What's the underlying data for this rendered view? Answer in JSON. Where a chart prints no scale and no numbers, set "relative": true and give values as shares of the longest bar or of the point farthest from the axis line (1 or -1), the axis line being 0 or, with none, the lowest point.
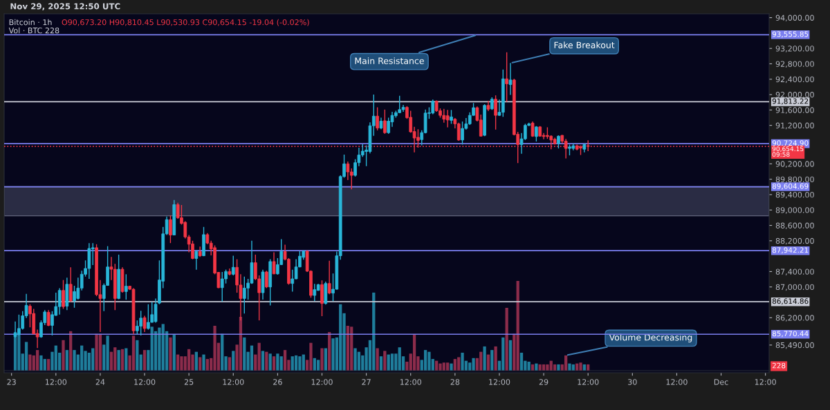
{
  "chart_data": [
    {
      "type": "candlestick",
      "title": "Bitcoin · 1h",
      "subtitle": "O90,673.20 H90,810.45 L90,530.93 C90,654.15 -19.04 (-0.02%)",
      "annotations": [
        "Nov 29, 2025 12:50 UTC",
        {
          "text": "Main Resistance",
          "x": "2025-11-28T06:00",
          "y": 93555.85
        },
        {
          "text": "Fake Breakout",
          "x": "2025-11-28T15:00",
          "y": 92820
        }
      ],
      "colors": [
        "#29b6d8",
        "#29b6d8",
        "#29b6d8",
        "#29b6d8",
        "#f23645",
        "#f23645",
        "#f23645",
        "#29b6d8",
        "#29b6d8",
        "#f23645",
        "#29b6d8",
        "#29b6d8",
        "#29b6d8",
        "#f23645",
        "#29b6d8",
        "#f23645",
        "#29b6d8",
        "#29b6d8",
        "#29b6d8",
        "#29b6d8",
        "#29b6d8",
        "#29b6d8",
        "#f23645",
        "#f23645",
        "#29b6d8",
        "#29b6d8",
        "#f23645",
        "#f23645",
        "#29b6d8",
        "#f23645",
        "#29b6d8",
        "#f23645",
        "#f23645",
        "#29b6d8",
        "#29b6d8",
        "#f23645",
        "#29b6d8",
        "#29b6d8",
        "#29b6d8",
        "#29b6d8",
        "#29b6d8",
        "#29b6d8",
        "#f23645",
        "#29b6d8",
        "#f23645",
        "#f23645",
        "#f23645",
        "#f23645",
        "#f23645",
        "#29b6d8",
        "#f23645",
        "#29b6d8",
        "#f23645",
        "#f23645",
        "#f23645",
        "#f23645",
        "#29b6d8",
        "#29b6d8",
        "#f23645",
        "#29b6d8",
        "#f23645",
        "#f23645",
        "#29b6d8",
        "#29b6d8",
        "#29b6d8",
        "#f23645",
        "#f23645",
        "#29b6d8",
        "#f23645",
        "#29b6d8",
        "#f23645",
        "#29b6d8",
        "#29b6d8",
        "#f23645",
        "#f23645",
        "#29b6d8",
        "#29b6d8",
        "#29b6d8",
        "#29b6d8",
        "#f23645",
        "#f23645",
        "#29b6d8",
        "#29b6d8",
        "#f23645",
        "#29b6d8",
        "#f23645",
        "#29b6d8",
        "#29b6d8",
        "#29b6d8",
        "#29b6d8",
        "#f23645",
        "#f23645",
        "#29b6d8",
        "#29b6d8",
        "#29b6d8",
        "#29b6d8",
        "#29b6d8",
        "#29b6d8",
        "#f23645",
        "#29b6d8",
        "#f23645",
        "#29b6d8",
        "#29b6d8",
        "#29b6d8",
        "#29b6d8",
        "#29b6d8",
        "#f23645",
        "#f23645",
        "#f23645",
        "#f23645",
        "#29b6d8",
        "#29b6d8",
        "#29b6d8",
        "#29b6d8",
        "#f23645",
        "#f23645",
        "#f23645",
        "#f23645",
        "#29b6d8",
        "#f23645",
        "#f23645",
        "#29b6d8",
        "#29b6d8",
        "#29b6d8",
        "#29b6d8",
        "#f23645",
        "#f23645",
        "#29b6d8",
        "#f23645",
        "#29b6d8",
        "#f23645",
        "#29b6d8",
        "#29b6d8",
        "#f23645",
        "#29b6d8",
        "#f23645",
        "#f23645",
        "#29b6d8",
        "#29b6d8",
        "#29b6d8",
        "#f23645",
        "#29b6d8",
        "#f23645",
        "#f23645",
        "#f23645",
        "#f23645",
        "#f23645",
        "#29b6d8",
        "#f23645",
        "#f23645",
        "#29b6d8",
        "#29b6d8",
        "#f23645",
        "#f23645",
        "#29b6d8",
        "#f23645"
      ],
      "x": [
        "2025-11-23T01:00",
        "2025-11-23T02:00",
        "2025-11-23T03:00",
        "2025-11-23T04:00",
        "2025-11-23T05:00",
        "2025-11-23T06:00",
        "2025-11-23T07:00",
        "2025-11-23T08:00",
        "2025-11-23T09:00",
        "2025-11-23T10:00",
        "2025-11-23T11:00",
        "2025-11-23T12:00",
        "2025-11-23T13:00",
        "2025-11-23T14:00",
        "2025-11-23T15:00",
        "2025-11-23T16:00",
        "2025-11-23T17:00",
        "2025-11-23T18:00",
        "2025-11-23T19:00",
        "2025-11-23T20:00",
        "2025-11-23T21:00",
        "2025-11-23T22:00",
        "2025-11-23T23:00",
        "2025-11-24T00:00",
        "2025-11-24T01:00",
        "2025-11-24T02:00",
        "2025-11-24T03:00",
        "2025-11-24T04:00",
        "2025-11-24T05:00",
        "2025-11-24T06:00",
        "2025-11-24T07:00",
        "2025-11-24T08:00",
        "2025-11-24T09:00",
        "2025-11-24T10:00",
        "2025-11-24T11:00",
        "2025-11-24T12:00",
        "2025-11-24T13:00",
        "2025-11-24T14:00",
        "2025-11-24T15:00",
        "2025-11-24T16:00",
        "2025-11-24T17:00",
        "2025-11-24T18:00",
        "2025-11-24T19:00",
        "2025-11-24T20:00",
        "2025-11-24T21:00",
        "2025-11-24T22:00",
        "2025-11-24T23:00",
        "2025-11-25T00:00",
        "2025-11-25T01:00",
        "2025-11-25T02:00",
        "2025-11-25T03:00",
        "2025-11-25T04:00",
        "2025-11-25T05:00",
        "2025-11-25T06:00",
        "2025-11-25T07:00",
        "2025-11-25T08:00",
        "2025-11-25T09:00",
        "2025-11-25T10:00",
        "2025-11-25T11:00",
        "2025-11-25T12:00",
        "2025-11-25T13:00",
        "2025-11-25T14:00",
        "2025-11-25T15:00",
        "2025-11-25T16:00",
        "2025-11-25T17:00",
        "2025-11-25T18:00",
        "2025-11-25T19:00",
        "2025-11-25T20:00",
        "2025-11-25T21:00",
        "2025-11-25T22:00",
        "2025-11-25T23:00",
        "2025-11-26T00:00",
        "2025-11-26T01:00",
        "2025-11-26T02:00",
        "2025-11-26T03:00",
        "2025-11-26T04:00",
        "2025-11-26T05:00",
        "2025-11-26T06:00",
        "2025-11-26T07:00",
        "2025-11-26T08:00",
        "2025-11-26T09:00",
        "2025-11-26T10:00",
        "2025-11-26T11:00",
        "2025-11-26T12:00",
        "2025-11-26T13:00",
        "2025-11-26T14:00",
        "2025-11-26T15:00",
        "2025-11-26T16:00",
        "2025-11-26T17:00",
        "2025-11-26T18:00",
        "2025-11-26T19:00",
        "2025-11-26T20:00",
        "2025-11-26T21:00",
        "2025-11-26T22:00",
        "2025-11-26T23:00",
        "2025-11-27T00:00",
        "2025-11-27T01:00",
        "2025-11-27T02:00",
        "2025-11-27T03:00",
        "2025-11-27T04:00",
        "2025-11-27T05:00",
        "2025-11-27T06:00",
        "2025-11-27T07:00",
        "2025-11-27T08:00",
        "2025-11-27T09:00",
        "2025-11-27T10:00",
        "2025-11-27T11:00",
        "2025-11-27T12:00",
        "2025-11-27T13:00",
        "2025-11-27T14:00",
        "2025-11-27T15:00",
        "2025-11-27T16:00",
        "2025-11-27T17:00",
        "2025-11-27T18:00",
        "2025-11-27T19:00",
        "2025-11-27T20:00",
        "2025-11-27T21:00",
        "2025-11-27T22:00",
        "2025-11-27T23:00",
        "2025-11-28T00:00",
        "2025-11-28T01:00",
        "2025-11-28T02:00",
        "2025-11-28T03:00",
        "2025-11-28T04:00",
        "2025-11-28T05:00",
        "2025-11-28T06:00",
        "2025-11-28T07:00",
        "2025-11-28T08:00",
        "2025-11-28T09:00",
        "2025-11-28T10:00",
        "2025-11-28T11:00",
        "2025-11-28T12:00",
        "2025-11-28T13:00",
        "2025-11-28T14:00",
        "2025-11-28T15:00",
        "2025-11-28T16:00",
        "2025-11-28T17:00",
        "2025-11-28T18:00",
        "2025-11-28T19:00",
        "2025-11-28T20:00",
        "2025-11-28T21:00",
        "2025-11-28T22:00",
        "2025-11-28T23:00",
        "2025-11-29T00:00",
        "2025-11-29T01:00",
        "2025-11-29T02:00",
        "2025-11-29T03:00",
        "2025-11-29T04:00",
        "2025-11-29T05:00",
        "2025-11-29T06:00",
        "2025-11-29T07:00",
        "2025-11-29T08:00",
        "2025-11-29T09:00",
        "2025-11-29T10:00",
        "2025-11-29T11:00",
        "2025-11-29T12:00"
      ],
      "ohlc": [
        [
          85710,
          86100,
          85680,
          85800
        ],
        [
          85770,
          86280,
          85740,
          85920
        ],
        [
          85920,
          86370,
          85890,
          86250
        ],
        [
          86250,
          86820,
          86190,
          86520
        ],
        [
          86500,
          86550,
          85950,
          86300
        ],
        [
          86310,
          86430,
          85770,
          85780
        ],
        [
          85790,
          85890,
          85410,
          85700
        ],
        [
          85700,
          86130,
          85680,
          86070
        ],
        [
          86070,
          86400,
          86010,
          86350
        ],
        [
          86340,
          86400,
          85980,
          86000
        ],
        [
          86000,
          86370,
          85740,
          86280
        ],
        [
          86260,
          86850,
          86250,
          86490
        ],
        [
          86490,
          86970,
          86280,
          86910
        ],
        [
          86910,
          87180,
          86430,
          86490
        ],
        [
          86500,
          87240,
          86400,
          87070
        ],
        [
          87070,
          87510,
          86610,
          86640
        ],
        [
          86640,
          87030,
          86460,
          86880
        ],
        [
          86700,
          87240,
          86670,
          86970
        ],
        [
          86970,
          87420,
          86910,
          87330
        ],
        [
          87330,
          87690,
          87270,
          87480
        ],
        [
          87480,
          88140,
          87210,
          88000
        ],
        [
          87990,
          88140,
          87570,
          88020
        ],
        [
          88020,
          88110,
          86760,
          86800
        ],
        [
          86800,
          87180,
          85830,
          86700
        ],
        [
          86700,
          87090,
          86370,
          87040
        ],
        [
          87040,
          88060,
          87030,
          87520
        ],
        [
          87520,
          87780,
          87180,
          87460
        ],
        [
          87460,
          87600,
          86400,
          86700
        ],
        [
          86700,
          87840,
          86680,
          87460
        ],
        [
          87460,
          87510,
          86850,
          86880
        ],
        [
          86880,
          87330,
          86670,
          87020
        ],
        [
          87020,
          87030,
          86920,
          86940
        ],
        [
          86940,
          86970,
          85770,
          85860
        ],
        [
          85860,
          86130,
          85770,
          85980
        ],
        [
          85980,
          86380,
          85740,
          86190
        ],
        [
          86200,
          86250,
          85830,
          85920
        ],
        [
          85920,
          86550,
          85890,
          86080
        ],
        [
          86080,
          86610,
          86070,
          86280
        ],
        [
          86100,
          86700,
          86070,
          86550
        ],
        [
          86580,
          87690,
          86550,
          87180
        ],
        [
          87150,
          88560,
          86970,
          88380
        ],
        [
          88380,
          88830,
          88350,
          88750
        ],
        [
          88750,
          88860,
          88140,
          88350
        ],
        [
          88350,
          89260,
          88350,
          89140
        ],
        [
          89140,
          89190,
          88770,
          88800
        ],
        [
          88800,
          89130,
          88620,
          88650
        ],
        [
          88680,
          88710,
          88260,
          88300
        ],
        [
          88300,
          88350,
          87900,
          88110
        ],
        [
          88120,
          88200,
          87720,
          87740
        ],
        [
          87740,
          87960,
          87450,
          87920
        ],
        [
          87920,
          88050,
          87780,
          87810
        ],
        [
          87810,
          88560,
          87800,
          88360
        ],
        [
          88360,
          88400,
          88110,
          88140
        ],
        [
          88140,
          88200,
          87820,
          87990
        ],
        [
          88020,
          88080,
          87330,
          87360
        ],
        [
          87380,
          87390,
          86970,
          86980
        ],
        [
          86980,
          87390,
          86620,
          87210
        ],
        [
          87210,
          87450,
          87090,
          87400
        ],
        [
          87400,
          87480,
          87300,
          87330
        ],
        [
          87330,
          87810,
          87300,
          87510
        ],
        [
          87510,
          87720,
          86850,
          87050
        ],
        [
          87050,
          87330,
          86130,
          86700
        ],
        [
          86700,
          87270,
          86310,
          86970
        ],
        [
          86970,
          87210,
          86670,
          87100
        ],
        [
          87100,
          88200,
          87080,
          87630
        ],
        [
          87630,
          87840,
          87180,
          87210
        ],
        [
          87210,
          87300,
          86130,
          86850
        ],
        [
          86850,
          87450,
          86670,
          87390
        ],
        [
          87390,
          87420,
          86970,
          87000
        ],
        [
          87000,
          87720,
          86520,
          87660
        ],
        [
          87660,
          87900,
          87330,
          87340
        ],
        [
          87340,
          87750,
          87320,
          87580
        ],
        [
          87580,
          88240,
          87570,
          87920
        ],
        [
          87920,
          88100,
          87690,
          87720
        ],
        [
          87720,
          87750,
          87060,
          87090
        ],
        [
          87090,
          87450,
          86880,
          87210
        ],
        [
          87210,
          87720,
          87200,
          87520
        ],
        [
          87520,
          87930,
          87510,
          87800
        ],
        [
          87770,
          87950,
          87710,
          87930
        ],
        [
          87930,
          87950,
          87390,
          87410
        ],
        [
          87410,
          87430,
          86720,
          86780
        ],
        [
          86780,
          87080,
          86630,
          86930
        ],
        [
          86910,
          87080,
          86900,
          87060
        ],
        [
          87060,
          87170,
          86240,
          86570
        ],
        [
          86570,
          87140,
          86540,
          87090
        ],
        [
          87090,
          87680,
          86810,
          86840
        ],
        [
          86840,
          87350,
          86630,
          86940
        ],
        [
          86940,
          87920,
          86930,
          87810
        ],
        [
          87810,
          89900,
          87710,
          89870
        ],
        [
          89870,
          90440,
          89840,
          90200
        ],
        [
          90200,
          90260,
          89780,
          89990
        ],
        [
          89990,
          90080,
          89540,
          89900
        ],
        [
          89900,
          90320,
          89870,
          90230
        ],
        [
          90230,
          90620,
          90140,
          90430
        ],
        [
          90430,
          90710,
          90380,
          90530
        ],
        [
          90520,
          90680,
          90140,
          90560
        ],
        [
          90520,
          91280,
          90470,
          91190
        ],
        [
          91190,
          92000,
          90930,
          91440
        ],
        [
          91440,
          91670,
          91070,
          91130
        ],
        [
          91130,
          91400,
          91100,
          91310
        ],
        [
          91320,
          91610,
          90980,
          91010
        ],
        [
          91010,
          91400,
          90980,
          91310
        ],
        [
          91290,
          91550,
          91160,
          91460
        ],
        [
          91450,
          91580,
          91400,
          91530
        ],
        [
          91530,
          91970,
          91520,
          91610
        ],
        [
          91610,
          91730,
          91550,
          91670
        ],
        [
          91670,
          91700,
          91370,
          91400
        ],
        [
          91410,
          91580,
          91010,
          91030
        ],
        [
          91040,
          91160,
          90500,
          90870
        ],
        [
          90890,
          91100,
          90620,
          90810
        ],
        [
          90830,
          91070,
          90680,
          91010
        ],
        [
          91010,
          91610,
          90990,
          91520
        ],
        [
          91510,
          91670,
          91370,
          91530
        ],
        [
          91520,
          91870,
          91490,
          91830
        ],
        [
          91830,
          91850,
          91550,
          91580
        ],
        [
          91580,
          91640,
          91400,
          91460
        ],
        [
          91460,
          91630,
          91270,
          91360
        ],
        [
          91450,
          91600,
          91150,
          91340
        ],
        [
          91330,
          91600,
          91240,
          91420
        ],
        [
          91360,
          91390,
          91120,
          91240
        ],
        [
          91240,
          91270,
          90800,
          90820
        ],
        [
          90820,
          91300,
          90700,
          91120
        ],
        [
          91120,
          91390,
          91090,
          91240
        ],
        [
          91240,
          91540,
          91210,
          91460
        ],
        [
          91460,
          91780,
          91450,
          91660
        ],
        [
          91660,
          91690,
          91300,
          91330
        ],
        [
          91340,
          91480,
          90910,
          90920
        ],
        [
          90940,
          91750,
          90920,
          91720
        ],
        [
          91720,
          91840,
          91570,
          91620
        ],
        [
          91630,
          91930,
          91600,
          91880
        ],
        [
          91880,
          91980,
          91090,
          91460
        ],
        [
          91460,
          91870,
          91450,
          91540
        ],
        [
          91540,
          92650,
          91420,
          92410
        ],
        [
          92410,
          93100,
          91810,
          92280
        ],
        [
          92260,
          92820,
          91990,
          92380
        ],
        [
          92380,
          92410,
          90940,
          90960
        ],
        [
          90970,
          91030,
          90220,
          90700
        ],
        [
          90700,
          91000,
          90460,
          90850
        ],
        [
          90850,
          91240,
          90820,
          91200
        ],
        [
          91200,
          91270,
          91180,
          91240
        ],
        [
          91260,
          91300,
          90900,
          90920
        ],
        [
          90910,
          91180,
          90780,
          91160
        ],
        [
          91160,
          91180,
          90910,
          90920
        ],
        [
          90940,
          91000,
          90840,
          90910
        ],
        [
          90940,
          91150,
          90850,
          90910
        ],
        [
          90920,
          90940,
          90580,
          90820
        ],
        [
          90840,
          90880,
          90700,
          90720
        ],
        [
          90730,
          90940,
          90600,
          90920
        ],
        [
          90940,
          90950,
          90730,
          90790
        ],
        [
          90790,
          90850,
          90340,
          90600
        ],
        [
          90600,
          90700,
          90420,
          90640
        ],
        [
          90600,
          90730,
          90550,
          90670
        ],
        [
          90670,
          90700,
          90550,
          90580
        ],
        [
          90640,
          90680,
          90430,
          90610
        ],
        [
          90580,
          90730,
          90500,
          90700
        ],
        [
          90673.2,
          90810.45,
          90530.93,
          90654.15
        ]
      ],
      "xlim": [
        "2025-11-22T22:00",
        "2025-12-01T13:00"
      ],
      "xticks": [
        {
          "value": "2025-11-23T00:00",
          "label": "23"
        },
        {
          "value": "2025-11-23T12:00",
          "label": "12:00"
        },
        {
          "value": "2025-11-24T00:00",
          "label": "24"
        },
        {
          "value": "2025-11-24T12:00",
          "label": "12:00"
        },
        {
          "value": "2025-11-25T00:00",
          "label": "25"
        },
        {
          "value": "2025-11-25T12:00",
          "label": "12:00"
        },
        {
          "value": "2025-11-26T00:00",
          "label": "26"
        },
        {
          "value": "2025-11-26T12:00",
          "label": "12:00"
        },
        {
          "value": "2025-11-27T00:00",
          "label": "27"
        },
        {
          "value": "2025-11-27T12:00",
          "label": "12:00"
        },
        {
          "value": "2025-11-28T00:00",
          "label": "28"
        },
        {
          "value": "2025-11-28T12:00",
          "label": "12:00"
        },
        {
          "value": "2025-11-29T00:00",
          "label": "29"
        },
        {
          "value": "2025-11-29T12:00",
          "label": "12:00"
        },
        {
          "value": "2025-11-30T00:00",
          "label": "30"
        },
        {
          "value": "2025-11-30T12:00",
          "label": "12:00"
        },
        {
          "value": "2025-12-01T00:00",
          "label": "Dec"
        },
        {
          "value": "2025-12-01T12:00",
          "label": "12:00"
        }
      ],
      "ylim": [
        84770,
        94100
      ],
      "yticks": [
        {
          "value": 94000,
          "label": "94,000.00"
        },
        {
          "value": 93200,
          "label": "93,200.00"
        },
        {
          "value": 92800,
          "label": "92,800.00"
        },
        {
          "value": 92400,
          "label": "92,400.00"
        },
        {
          "value": 92000,
          "label": "92,000.00"
        },
        {
          "value": 91600,
          "label": "91,600.00"
        },
        {
          "value": 91200,
          "label": "91,200.00"
        },
        {
          "value": 90200,
          "label": "90,200.00"
        },
        {
          "value": 89800,
          "label": "89,800.00"
        },
        {
          "value": 89400,
          "label": "89,400.00"
        },
        {
          "value": 89000,
          "label": "89,000.00"
        },
        {
          "value": 88600,
          "label": "88,600.00"
        },
        {
          "value": 88200,
          "label": "88,200.00"
        },
        {
          "value": 87400,
          "label": "87,400.00"
        },
        {
          "value": 87000,
          "label": "87,000.00"
        },
        {
          "value": 86200,
          "label": "86,200.00"
        },
        {
          "value": 85490,
          "label": "85,490.00"
        }
      ],
      "ref_lines": [
        {
          "axis": "y",
          "value": 93555.85,
          "label": "93,555.85",
          "color": "#7b7ff0"
        },
        {
          "axis": "y",
          "value": 91813.22,
          "label": "91,813.22",
          "color": "#c9ccd6"
        },
        {
          "axis": "y",
          "value": 90724.9,
          "label": "90,724.90",
          "color": "#7b7ff0"
        },
        {
          "axis": "y",
          "value": 90654.15,
          "label": "90,654.15\n09:58",
          "color": "#f23645",
          "line_style": "dotted"
        },
        {
          "axis": "y",
          "value": 89604.69,
          "label": "89,604.69",
          "color": "#7b7ff0"
        },
        {
          "axis": "y",
          "value": 87942.21,
          "label": "87,942.21",
          "color": "#7b7ff0"
        },
        {
          "axis": "y",
          "value": 86614.86,
          "label": "86,614.86",
          "color": "#c9ccd6"
        },
        {
          "axis": "y",
          "value": 85770.44,
          "label": "85,770.44",
          "color": "#7b7ff0"
        }
      ],
      "bands": [
        {
          "axis": "y",
          "from": 88850,
          "to": 89604.69,
          "color": "#3a3d55"
        }
      ]
    },
    {
      "type": "bar",
      "title": "Vol · BTC 228",
      "relative": true,
      "tick_labels": false,
      "xlim": [
        "2025-11-22T22:00",
        "2025-12-01T13:00"
      ],
      "annotations": [
        "228",
        {
          "text": "Volume Decreasing",
          "x": "2025-11-29T06:00",
          "y": 0.17
        }
      ],
      "x": [
        "2025-11-23T01:00",
        "2025-11-23T02:00",
        "2025-11-23T03:00",
        "2025-11-23T04:00",
        "2025-11-23T05:00",
        "2025-11-23T06:00",
        "2025-11-23T07:00",
        "2025-11-23T08:00",
        "2025-11-23T09:00",
        "2025-11-23T10:00",
        "2025-11-23T11:00",
        "2025-11-23T12:00",
        "2025-11-23T13:00",
        "2025-11-23T14:00",
        "2025-11-23T15:00",
        "2025-11-23T16:00",
        "2025-11-23T17:00",
        "2025-11-23T18:00",
        "2025-11-23T19:00",
        "2025-11-23T20:00",
        "2025-11-23T21:00",
        "2025-11-23T22:00",
        "2025-11-23T23:00",
        "2025-11-24T00:00",
        "2025-11-24T01:00",
        "2025-11-24T02:00",
        "2025-11-24T03:00",
        "2025-11-24T04:00",
        "2025-11-24T05:00",
        "2025-11-24T06:00",
        "2025-11-24T07:00",
        "2025-11-24T08:00",
        "2025-11-24T09:00",
        "2025-11-24T10:00",
        "2025-11-24T11:00",
        "2025-11-24T12:00",
        "2025-11-24T13:00",
        "2025-11-24T14:00",
        "2025-11-24T15:00",
        "2025-11-24T16:00",
        "2025-11-24T17:00",
        "2025-11-24T18:00",
        "2025-11-24T19:00",
        "2025-11-24T20:00",
        "2025-11-24T21:00",
        "2025-11-24T22:00",
        "2025-11-24T23:00",
        "2025-11-25T00:00",
        "2025-11-25T01:00",
        "2025-11-25T02:00",
        "2025-11-25T03:00",
        "2025-11-25T04:00",
        "2025-11-25T05:00",
        "2025-11-25T06:00",
        "2025-11-25T07:00",
        "2025-11-25T08:00",
        "2025-11-25T09:00",
        "2025-11-25T10:00",
        "2025-11-25T11:00",
        "2025-11-25T12:00",
        "2025-11-25T13:00",
        "2025-11-25T14:00",
        "2025-11-25T15:00",
        "2025-11-25T16:00",
        "2025-11-25T17:00",
        "2025-11-25T18:00",
        "2025-11-25T19:00",
        "2025-11-25T20:00",
        "2025-11-25T21:00",
        "2025-11-25T22:00",
        "2025-11-25T23:00",
        "2025-11-26T00:00",
        "2025-11-26T01:00",
        "2025-11-26T02:00",
        "2025-11-26T03:00",
        "2025-11-26T04:00",
        "2025-11-26T05:00",
        "2025-11-26T06:00",
        "2025-11-26T07:00",
        "2025-11-26T08:00",
        "2025-11-26T09:00",
        "2025-11-26T10:00",
        "2025-11-26T11:00",
        "2025-11-26T12:00",
        "2025-11-26T13:00",
        "2025-11-26T14:00",
        "2025-11-26T15:00",
        "2025-11-26T16:00",
        "2025-11-26T17:00",
        "2025-11-26T18:00",
        "2025-11-26T19:00",
        "2025-11-26T20:00",
        "2025-11-26T21:00",
        "2025-11-26T22:00",
        "2025-11-26T23:00",
        "2025-11-27T00:00",
        "2025-11-27T01:00",
        "2025-11-27T02:00",
        "2025-11-27T03:00",
        "2025-11-27T04:00",
        "2025-11-27T05:00",
        "2025-11-27T06:00",
        "2025-11-27T07:00",
        "2025-11-27T08:00",
        "2025-11-27T09:00",
        "2025-11-27T10:00",
        "2025-11-27T11:00",
        "2025-11-27T12:00",
        "2025-11-27T13:00",
        "2025-11-27T14:00",
        "2025-11-27T15:00",
        "2025-11-27T16:00",
        "2025-11-27T17:00",
        "2025-11-27T18:00",
        "2025-11-27T19:00",
        "2025-11-27T20:00",
        "2025-11-27T21:00",
        "2025-11-27T22:00",
        "2025-11-27T23:00",
        "2025-11-28T00:00",
        "2025-11-28T01:00",
        "2025-11-28T02:00",
        "2025-11-28T03:00",
        "2025-11-28T04:00",
        "2025-11-28T05:00",
        "2025-11-28T06:00",
        "2025-11-28T07:00",
        "2025-11-28T08:00",
        "2025-11-28T09:00",
        "2025-11-28T10:00",
        "2025-11-28T11:00",
        "2025-11-28T12:00",
        "2025-11-28T13:00",
        "2025-11-28T14:00",
        "2025-11-28T15:00",
        "2025-11-28T16:00",
        "2025-11-28T17:00",
        "2025-11-28T18:00",
        "2025-11-28T19:00",
        "2025-11-28T20:00",
        "2025-11-28T21:00",
        "2025-11-28T22:00",
        "2025-11-28T23:00",
        "2025-11-29T00:00",
        "2025-11-29T01:00",
        "2025-11-29T02:00",
        "2025-11-29T03:00",
        "2025-11-29T04:00",
        "2025-11-29T05:00",
        "2025-11-29T06:00",
        "2025-11-29T07:00",
        "2025-11-29T08:00",
        "2025-11-29T09:00",
        "2025-11-29T10:00",
        "2025-11-29T11:00",
        "2025-11-29T12:00"
      ],
      "values": [
        0.43,
        0.4,
        0.19,
        0.32,
        0.18,
        0.17,
        0.23,
        0.17,
        0.13,
        0.13,
        0.21,
        0.28,
        0.2,
        0.34,
        0.23,
        0.44,
        0.23,
        0.18,
        0.28,
        0.22,
        0.2,
        0.25,
        0.41,
        0.41,
        0.29,
        0.39,
        0.21,
        0.26,
        0.23,
        0.24,
        0.25,
        0.17,
        0.39,
        0.34,
        0.18,
        0.23,
        0.23,
        0.49,
        0.44,
        0.48,
        0.52,
        0.44,
        0.37,
        0.4,
        0.18,
        0.16,
        0.16,
        0.24,
        0.18,
        0.21,
        0.15,
        0.18,
        0.13,
        0.14,
        0.5,
        0.31,
        0.41,
        0.16,
        0.15,
        0.22,
        0.29,
        0.6,
        0.37,
        0.21,
        0.28,
        0.18,
        0.31,
        0.22,
        0.21,
        0.19,
        0.16,
        0.19,
        0.16,
        0.23,
        0.12,
        0.16,
        0.17,
        0.16,
        0.18,
        0.12,
        0.31,
        0.14,
        0.12,
        0.25,
        0.25,
        0.43,
        0.36,
        0.37,
        0.74,
        0.64,
        0.5,
        0.49,
        0.25,
        0.21,
        0.17,
        0.26,
        0.34,
        0.87,
        0.25,
        0.16,
        0.22,
        0.18,
        0.19,
        0.19,
        0.26,
        0.16,
        0.1,
        0.19,
        0.4,
        0.16,
        0.12,
        0.23,
        0.21,
        0.13,
        0.11,
        0.08,
        0.09,
        0.09,
        0.08,
        0.13,
        0.15,
        0.2,
        0.11,
        0.09,
        0.14,
        0.14,
        0.21,
        0.27,
        0.18,
        0.23,
        0.27,
        0.11,
        0.37,
        0.7,
        0.34,
        0.41,
        1.0,
        0.2,
        0.11,
        0.1,
        0.07,
        0.08,
        0.07,
        0.07,
        0.07,
        0.11,
        0.07,
        0.07,
        0.07,
        0.17,
        0.08,
        0.07,
        0.08,
        0.09,
        0.07,
        0.07
      ],
      "colors": [
        "#1f7e9c",
        "#1f7e9c",
        "#1f7e9c",
        "#1f7e9c",
        "#8c2c4b",
        "#8c2c4b",
        "#8c2c4b",
        "#1f7e9c",
        "#1f7e9c",
        "#8c2c4b",
        "#1f7e9c",
        "#1f7e9c",
        "#1f7e9c",
        "#8c2c4b",
        "#1f7e9c",
        "#8c2c4b",
        "#1f7e9c",
        "#1f7e9c",
        "#1f7e9c",
        "#1f7e9c",
        "#1f7e9c",
        "#1f7e9c",
        "#8c2c4b",
        "#8c2c4b",
        "#1f7e9c",
        "#1f7e9c",
        "#8c2c4b",
        "#8c2c4b",
        "#1f7e9c",
        "#8c2c4b",
        "#1f7e9c",
        "#8c2c4b",
        "#8c2c4b",
        "#1f7e9c",
        "#1f7e9c",
        "#8c2c4b",
        "#1f7e9c",
        "#1f7e9c",
        "#1f7e9c",
        "#1f7e9c",
        "#1f7e9c",
        "#1f7e9c",
        "#8c2c4b",
        "#1f7e9c",
        "#8c2c4b",
        "#8c2c4b",
        "#8c2c4b",
        "#8c2c4b",
        "#8c2c4b",
        "#1f7e9c",
        "#8c2c4b",
        "#1f7e9c",
        "#8c2c4b",
        "#8c2c4b",
        "#8c2c4b",
        "#8c2c4b",
        "#1f7e9c",
        "#1f7e9c",
        "#8c2c4b",
        "#1f7e9c",
        "#8c2c4b",
        "#8c2c4b",
        "#1f7e9c",
        "#1f7e9c",
        "#1f7e9c",
        "#8c2c4b",
        "#8c2c4b",
        "#1f7e9c",
        "#8c2c4b",
        "#1f7e9c",
        "#8c2c4b",
        "#1f7e9c",
        "#1f7e9c",
        "#8c2c4b",
        "#8c2c4b",
        "#1f7e9c",
        "#1f7e9c",
        "#1f7e9c",
        "#1f7e9c",
        "#8c2c4b",
        "#8c2c4b",
        "#1f7e9c",
        "#1f7e9c",
        "#8c2c4b",
        "#1f7e9c",
        "#8c2c4b",
        "#1f7e9c",
        "#1f7e9c",
        "#1f7e9c",
        "#1f7e9c",
        "#8c2c4b",
        "#8c2c4b",
        "#1f7e9c",
        "#1f7e9c",
        "#1f7e9c",
        "#1f7e9c",
        "#1f7e9c",
        "#1f7e9c",
        "#8c2c4b",
        "#1f7e9c",
        "#8c2c4b",
        "#1f7e9c",
        "#1f7e9c",
        "#1f7e9c",
        "#1f7e9c",
        "#1f7e9c",
        "#8c2c4b",
        "#8c2c4b",
        "#8c2c4b",
        "#8c2c4b",
        "#1f7e9c",
        "#1f7e9c",
        "#1f7e9c",
        "#1f7e9c",
        "#8c2c4b",
        "#8c2c4b",
        "#8c2c4b",
        "#8c2c4b",
        "#1f7e9c",
        "#8c2c4b",
        "#8c2c4b",
        "#1f7e9c",
        "#1f7e9c",
        "#1f7e9c",
        "#1f7e9c",
        "#8c2c4b",
        "#8c2c4b",
        "#1f7e9c",
        "#8c2c4b",
        "#1f7e9c",
        "#8c2c4b",
        "#1f7e9c",
        "#1f7e9c",
        "#8c2c4b",
        "#1f7e9c",
        "#8c2c4b",
        "#8c2c4b",
        "#1f7e9c",
        "#1f7e9c",
        "#1f7e9c",
        "#8c2c4b",
        "#1f7e9c",
        "#8c2c4b",
        "#8c2c4b",
        "#8c2c4b",
        "#8c2c4b",
        "#8c2c4b",
        "#1f7e9c",
        "#8c2c4b",
        "#8c2c4b",
        "#1f7e9c",
        "#1f7e9c",
        "#8c2c4b",
        "#8c2c4b",
        "#1f7e9c",
        "#8c2c4b"
      ]
    }
  ]
}
